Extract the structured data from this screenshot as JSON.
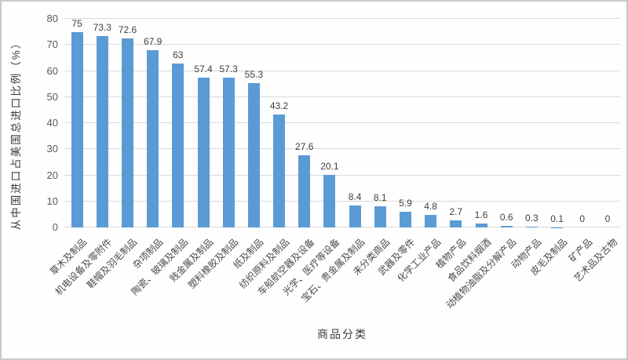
{
  "chart_data": {
    "type": "bar",
    "title": "",
    "xlabel": "商品分类",
    "ylabel": "从中国进口占美国总进口比例（%）",
    "ylim": [
      0,
      80
    ],
    "ytick_step": 10,
    "grid": true,
    "legend": false,
    "bar_color": "#5b9bd5",
    "gridline_color": "#d9d9d9",
    "categories": [
      "草木及制品",
      "机电设备及零附件",
      "鞋帽及羽毛制品",
      "杂项制品",
      "陶瓷、玻璃及制品",
      "贱金属及制品",
      "塑料橡胶及制品",
      "纸及制品",
      "纺织原料及制品",
      "车船航空器及设备",
      "光学、医疗等设备",
      "宝石、贵金属及制品",
      "未分类商品",
      "武器及零件",
      "化学工业产品",
      "植物产品",
      "食品饮料烟酒",
      "动植物油脂及分解产品",
      "动物产品",
      "皮毛及制品",
      "矿产品",
      "艺术品及古物"
    ],
    "values": [
      75,
      73.3,
      72.6,
      67.9,
      63,
      57.4,
      57.3,
      55.3,
      43.2,
      27.6,
      20.1,
      8.4,
      8.1,
      5.9,
      4.8,
      2.7,
      1.6,
      0.6,
      0.3,
      0.1,
      0,
      0
    ]
  }
}
